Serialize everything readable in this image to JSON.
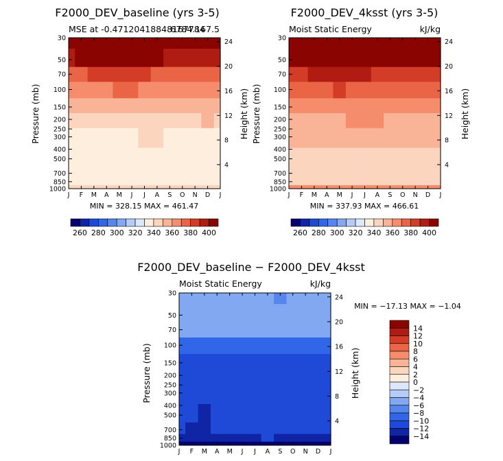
{
  "panels": [
    {
      "id": "baseline",
      "title": "F2000_DEV_baseline (yrs 3-5)",
      "subtitle_left": "MSE at -0.47120418848167784",
      "subtitle_right": "6784.167.5",
      "ylabel_left": "Pressure (mb)",
      "ylabel_right": "Height (km)",
      "stats": "MIN = 328.15   MAX = 461.47"
    },
    {
      "id": "4ksst",
      "title": "F2000_DEV_4ksst (yrs 3-5)",
      "subtitle_left": "Moist Static Energy",
      "subtitle_right": "kJ/kg",
      "ylabel_left": "Pressure (mb)",
      "ylabel_right": "Height (km)",
      "stats": "MIN = 337.93   MAX = 466.61"
    },
    {
      "id": "diff",
      "title": "F2000_DEV_baseline − F2000_DEV_4ksst",
      "subtitle_left": "Moist Static Energy",
      "subtitle_right": "kJ/kg",
      "ylabel_left": "Pressure (mb)",
      "ylabel_right": "Height (km)",
      "stats": "MIN = −17.13   MAX =  −1.04"
    }
  ],
  "colors": {
    "mse_scale": [
      "#05006e",
      "#0f25a6",
      "#1f4ad8",
      "#3266e8",
      "#5585ee",
      "#82a8f2",
      "#b4ccf6",
      "#dbe7fa",
      "#fdeede",
      "#fcd5bf",
      "#f9b497",
      "#f58d6c",
      "#ea6446",
      "#d33d28",
      "#b11c12",
      "#8a0402"
    ],
    "diff_scale": [
      "#05006e",
      "#0f25a6",
      "#1f4ad8",
      "#3266e8",
      "#5585ee",
      "#82a8f2",
      "#b4ccf6",
      "#dbe7fa",
      "#fdeede",
      "#fcd5bf",
      "#f9b497",
      "#f58d6c",
      "#ea6446",
      "#d33d28",
      "#b11c12",
      "#8a0402"
    ]
  },
  "chart_data": [
    {
      "type": "heatmap",
      "title": "F2000_DEV_baseline (yrs 3-5)",
      "subtitle": "MSE at -0.47120418848167784",
      "subtitle_right": "6784.167.5",
      "xlabel": "",
      "ylabel": "Pressure (mb)",
      "ylabel_right": "Height (km)",
      "x_ticks": [
        "J",
        "F",
        "M",
        "A",
        "M",
        "J",
        "J",
        "A",
        "S",
        "O",
        "N",
        "D",
        "J"
      ],
      "y_ticks": [
        30,
        50,
        70,
        100,
        150,
        200,
        250,
        300,
        400,
        500,
        700,
        850,
        1000
      ],
      "y_scale": "log",
      "y_ticks_right": [
        24,
        20,
        16,
        12,
        8,
        4
      ],
      "pressure_levels": [
        30,
        50,
        70,
        100,
        150,
        200,
        300,
        500,
        700,
        850,
        1000
      ],
      "values": [
        [
          461,
          461,
          461,
          461,
          461,
          461,
          461,
          461,
          461,
          461,
          461,
          461,
          461
        ],
        [
          398,
          400,
          401,
          402,
          403,
          402,
          401,
          400,
          399,
          399,
          399,
          399,
          398
        ],
        [
          375,
          378,
          380,
          381,
          382,
          381,
          380,
          379,
          378,
          378,
          377,
          376,
          375
        ],
        [
          362,
          365,
          367,
          369,
          371,
          370,
          369,
          368,
          368,
          367,
          366,
          364,
          362
        ],
        [
          352,
          353,
          354,
          354,
          355,
          355,
          355,
          355,
          355,
          355,
          354,
          353,
          352
        ],
        [
          346,
          347,
          348,
          348,
          349,
          349,
          349,
          348,
          348,
          348,
          349,
          350,
          346
        ],
        [
          338,
          338,
          339,
          339,
          339,
          339,
          340,
          340,
          339,
          339,
          339,
          339,
          338
        ],
        [
          334,
          334,
          334,
          334,
          334,
          334,
          334,
          334,
          334,
          334,
          334,
          334,
          334
        ],
        [
          334,
          334,
          334,
          334,
          334,
          334,
          332,
          333,
          331,
          330,
          331,
          334,
          334
        ],
        [
          336,
          336,
          336,
          336,
          336,
          336,
          336,
          336,
          336,
          336,
          336,
          336,
          336
        ],
        [
          344,
          344,
          345,
          345,
          346,
          346,
          346,
          346,
          345,
          345,
          345,
          344,
          344
        ]
      ],
      "colorbar": {
        "labels": [
          260,
          280,
          300,
          320,
          340,
          360,
          380,
          400
        ],
        "bounds": [
          250,
          410
        ]
      },
      "stats_min": 328.15,
      "stats_max": 461.47
    },
    {
      "type": "heatmap",
      "title": "F2000_DEV_4ksst (yrs 3-5)",
      "subtitle": "Moist Static Energy",
      "subtitle_right": "kJ/kg",
      "xlabel": "",
      "ylabel": "Pressure (mb)",
      "ylabel_right": "Height (km)",
      "x_ticks": [
        "J",
        "F",
        "M",
        "A",
        "M",
        "J",
        "J",
        "A",
        "S",
        "O",
        "N",
        "D",
        "J"
      ],
      "y_ticks": [
        30,
        50,
        70,
        100,
        150,
        200,
        250,
        300,
        400,
        500,
        700,
        850,
        1000
      ],
      "y_scale": "log",
      "y_ticks_right": [
        24,
        20,
        16,
        12,
        8,
        4
      ],
      "pressure_levels": [
        30,
        50,
        70,
        100,
        150,
        200,
        300,
        500,
        700,
        850,
        1000
      ],
      "values": [
        [
          466,
          466,
          466,
          466,
          466,
          466,
          466,
          466,
          466,
          466,
          466,
          466,
          466
        ],
        [
          404,
          406,
          407,
          408,
          409,
          408,
          407,
          406,
          405,
          405,
          405,
          405,
          404
        ],
        [
          386,
          388,
          390,
          391,
          392,
          391,
          390,
          389,
          388,
          388,
          387,
          386,
          386
        ],
        [
          374,
          376,
          378,
          379,
          380,
          379,
          378,
          377,
          377,
          376,
          375,
          374,
          374
        ],
        [
          365,
          366,
          367,
          367,
          368,
          368,
          368,
          368,
          368,
          367,
          366,
          365,
          365
        ],
        [
          358,
          358,
          358,
          359,
          359,
          360,
          360,
          360,
          359,
          359,
          359,
          359,
          358
        ],
        [
          352,
          352,
          352,
          352,
          352,
          352,
          352,
          352,
          352,
          352,
          352,
          351,
          351
        ],
        [
          347,
          347,
          347,
          347,
          347,
          347,
          347,
          347,
          347,
          347,
          347,
          347,
          347
        ],
        [
          346,
          346,
          346,
          346,
          346,
          346,
          346,
          346,
          344,
          343,
          344,
          346,
          346
        ],
        [
          349,
          349,
          349,
          349,
          349,
          349,
          349,
          349,
          349,
          349,
          349,
          349,
          349
        ],
        [
          362,
          362,
          362,
          363,
          363,
          363,
          363,
          363,
          363,
          363,
          362,
          362,
          362
        ]
      ],
      "colorbar": {
        "labels": [
          260,
          280,
          300,
          320,
          340,
          360,
          380,
          400
        ],
        "bounds": [
          250,
          410
        ]
      },
      "stats_min": 337.93,
      "stats_max": 466.61
    },
    {
      "type": "heatmap",
      "title": "F2000_DEV_baseline − F2000_DEV_4ksst",
      "subtitle": "Moist Static Energy",
      "subtitle_right": "kJ/kg",
      "xlabel": "",
      "ylabel": "Pressure (mb)",
      "ylabel_right": "Height (km)",
      "x_ticks": [
        "J",
        "F",
        "M",
        "A",
        "M",
        "J",
        "J",
        "A",
        "S",
        "O",
        "N",
        "D",
        "J"
      ],
      "y_ticks": [
        30,
        50,
        70,
        100,
        150,
        200,
        250,
        300,
        400,
        500,
        700,
        850,
        1000
      ],
      "y_scale": "log",
      "y_ticks_right": [
        24,
        20,
        16,
        12,
        8,
        4
      ],
      "pressure_levels": [
        30,
        50,
        70,
        100,
        150,
        200,
        300,
        500,
        700,
        850,
        1000
      ],
      "values": [
        [
          -4.5,
          -4.8,
          -5.0,
          -4.6,
          -4.8,
          -4.8,
          -4.9,
          -5.4,
          -6.1,
          -5.0,
          -4.4,
          -4.3,
          -4.5
        ],
        [
          -5.2,
          -5.3,
          -5.4,
          -5.2,
          -5.3,
          -5.4,
          -5.4,
          -5.6,
          -5.9,
          -5.4,
          -5.0,
          -4.8,
          -5.2
        ],
        [
          -5.4,
          -5.6,
          -5.6,
          -5.5,
          -5.5,
          -5.5,
          -5.5,
          -5.5,
          -5.6,
          -5.5,
          -5.2,
          -5.3,
          -5.4
        ],
        [
          -9.0,
          -9.2,
          -9.3,
          -9.4,
          -9.3,
          -9.1,
          -9.0,
          -9.1,
          -9.2,
          -9.3,
          -9.3,
          -9.2,
          -9.0
        ],
        [
          -10.5,
          -10.9,
          -11.0,
          -11.0,
          -10.9,
          -10.8,
          -10.7,
          -10.9,
          -10.8,
          -10.7,
          -10.6,
          -10.8,
          -10.5
        ],
        [
          -11.0,
          -10.7,
          -10.6,
          -10.6,
          -10.9,
          -10.8,
          -10.7,
          -11.1,
          -11.0,
          -10.7,
          -10.8,
          -11.1,
          -11.0
        ],
        [
          -11.2,
          -10.8,
          -11.1,
          -11.2,
          -11.0,
          -11.1,
          -11.1,
          -11.0,
          -11.1,
          -11.0,
          -11.1,
          -11.2,
          -11.2
        ],
        [
          -11.4,
          -11.2,
          -12.1,
          -11.7,
          -11.5,
          -11.4,
          -11.8,
          -11.6,
          -11.3,
          -11.0,
          -11.3,
          -11.5,
          -11.4
        ],
        [
          -11.6,
          -12.3,
          -12.2,
          -11.8,
          -11.6,
          -11.8,
          -11.7,
          -11.5,
          -11.6,
          -11.5,
          -11.6,
          -11.7,
          -11.6
        ],
        [
          -12.3,
          -13.8,
          -13.0,
          -12.2,
          -12.1,
          -12.6,
          -12.1,
          -12.0,
          -12.2,
          -12.1,
          -12.4,
          -12.6,
          -12.3
        ],
        [
          -17.0,
          -17.1,
          -17.1,
          -17.1,
          -17.0,
          -17.0,
          -17.0,
          -17.0,
          -17.0,
          -17.0,
          -17.1,
          -17.1,
          -17.0
        ]
      ],
      "colorbar": {
        "labels": [
          14,
          12,
          10,
          8,
          6,
          4,
          2,
          0,
          -2,
          -4,
          -6,
          -8,
          -10,
          -12,
          -14
        ],
        "bounds": [
          -16,
          16
        ]
      },
      "stats_min": -17.13,
      "stats_max": -1.04
    }
  ]
}
